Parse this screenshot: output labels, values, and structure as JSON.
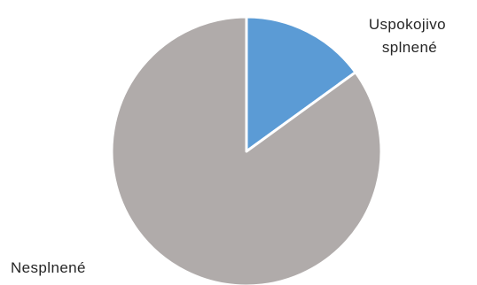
{
  "chart_data": {
    "type": "pie",
    "slices": [
      {
        "label_lines": [
          "Uspokojivo",
          "splnené"
        ],
        "value": 15,
        "color": "#5B9BD5"
      },
      {
        "label_lines": [
          "Nesplnené"
        ],
        "value": 85,
        "color": "#B0ABAA"
      }
    ],
    "start_angle_deg": 0,
    "direction": "clockwise",
    "slice_border_color": "#ffffff",
    "legend": "none",
    "grid": false
  }
}
